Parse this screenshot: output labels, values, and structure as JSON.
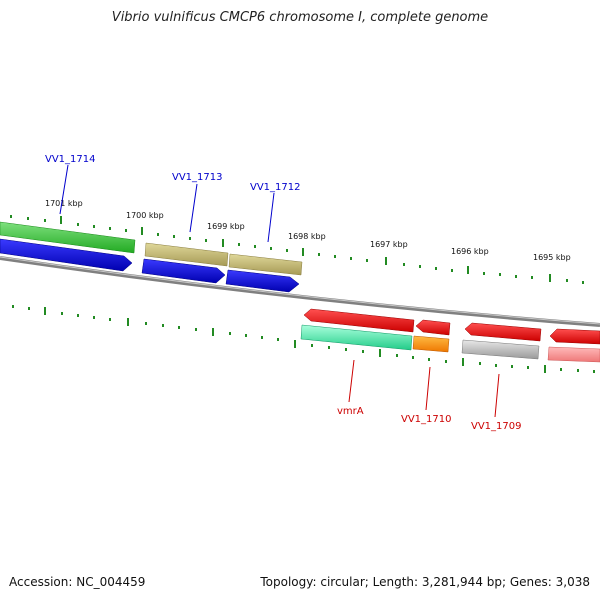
{
  "title": "Vibrio vulnificus CMCP6 chromosome I, complete genome",
  "accession": "Accession: NC_004459",
  "topology": "Topology: circular; Length: 3,281,944 bp; Genes: 3,038",
  "kbp_labels": [
    "1701 kbp",
    "1700 kbp",
    "1699 kbp",
    "1698 kbp",
    "1697 kbp",
    "1696 kbp",
    "1695 kbp"
  ],
  "genes": {
    "VV1_1714": "VV1_1714",
    "VV1_1713": "VV1_1713",
    "VV1_1712": "VV1_1712",
    "vmrA": "vmrA",
    "VV1_1710": "VV1_1710",
    "VV1_1709": "VV1_1709"
  },
  "colors": {
    "forward_label": "#0000cc",
    "reverse_label": "#cc0000",
    "tick": "#228b22",
    "backbone": "#808080"
  }
}
